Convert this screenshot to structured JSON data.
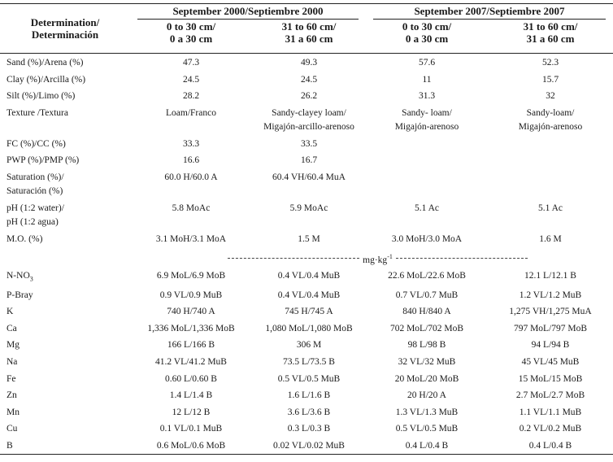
{
  "header": {
    "determination": [
      "Determination/",
      "Determinación"
    ],
    "groups": [
      "September 2000/Septiembre 2000",
      "September 2007/Septiembre 2007"
    ],
    "depths": [
      [
        "0 to 30 cm/",
        "0 a 30 cm"
      ],
      [
        "31 to 60 cm/",
        "31 a 60 cm"
      ],
      [
        "0 to 30 cm/",
        "0 a 30 cm"
      ],
      [
        "31 to 60 cm/",
        "31 a 60 cm"
      ]
    ]
  },
  "rows_top": [
    {
      "label": [
        "Sand (%)/Arena (%)"
      ],
      "values": [
        [
          "47.3"
        ],
        [
          "49.3"
        ],
        [
          "57.6"
        ],
        [
          "52.3"
        ]
      ]
    },
    {
      "label": [
        "Clay (%)/Arcilla (%)"
      ],
      "values": [
        [
          "24.5"
        ],
        [
          "24.5"
        ],
        [
          "11"
        ],
        [
          "15.7"
        ]
      ]
    },
    {
      "label": [
        "Silt (%)/Limo (%)"
      ],
      "values": [
        [
          "28.2"
        ],
        [
          "26.2"
        ],
        [
          "31.3"
        ],
        [
          "32"
        ]
      ]
    },
    {
      "label": [
        "Texture /Textura"
      ],
      "values": [
        [
          "Loam/Franco"
        ],
        [
          "Sandy-clayey loam/",
          "Migajón-arcillo-arenoso"
        ],
        [
          "Sandy- loam/",
          "Migajón-arenoso"
        ],
        [
          "Sandy-loam/",
          "Migajón-arenoso"
        ]
      ]
    },
    {
      "label": [
        "FC (%)/CC (%)"
      ],
      "values": [
        [
          "33.3"
        ],
        [
          "33.5"
        ],
        null,
        null
      ]
    },
    {
      "label": [
        "PWP (%)/PMP (%)"
      ],
      "values": [
        [
          "16.6"
        ],
        [
          "16.7"
        ],
        null,
        null
      ]
    },
    {
      "label": [
        "Saturation (%)/",
        "Saturación (%)"
      ],
      "values": [
        [
          "60.0 H/60.0 A"
        ],
        [
          "60.4 VH/60.4 MuA"
        ],
        null,
        null
      ]
    },
    {
      "label": [
        "pH (1:2 water)/",
        "pH (1:2 agua)"
      ],
      "values": [
        [
          "5.8 MoAc"
        ],
        [
          "5.9 MoAc"
        ],
        [
          "5.1 Ac"
        ],
        [
          "5.1 Ac"
        ]
      ]
    },
    {
      "label": [
        "M.O. (%)"
      ],
      "values": [
        [
          "3.1 MoH/3.1 MoA"
        ],
        [
          "1.5 M"
        ],
        [
          "3.0  MoH/3.0 MoA"
        ],
        [
          "1.6 M"
        ]
      ]
    }
  ],
  "unit": {
    "text": "mg·kg",
    "sup": "-1"
  },
  "rows_bottom": [
    {
      "label": [
        "N-NO"
      ],
      "label_sub": "3",
      "values": [
        [
          "6.9 MoL/6.9 MoB"
        ],
        [
          "0.4 VL/0.4 MuB"
        ],
        [
          "22.6 MoL/22.6 MoB"
        ],
        [
          "12.1 L/12.1 B"
        ]
      ]
    },
    {
      "label": [
        "P-Bray"
      ],
      "values": [
        [
          "0.9 VL/0.9 MuB"
        ],
        [
          "0.4 VL/0.4 MuB"
        ],
        [
          "0.7 VL/0.7 MuB"
        ],
        [
          "1.2 VL/1.2 MuB"
        ]
      ]
    },
    {
      "label": [
        "K"
      ],
      "values": [
        [
          "740 H/740 A"
        ],
        [
          "745 H/745 A"
        ],
        [
          "840 H/840 A"
        ],
        [
          "1,275 VH/1,275 MuA"
        ]
      ]
    },
    {
      "label": [
        "Ca"
      ],
      "values": [
        [
          "1,336 MoL/1,336 MoB"
        ],
        [
          "1,080 MoL/1,080 MoB"
        ],
        [
          "702 MoL/702 MoB"
        ],
        [
          "797 MoL/797 MoB"
        ]
      ]
    },
    {
      "label": [
        "Mg"
      ],
      "values": [
        [
          "166 L/166 B"
        ],
        [
          "306 M"
        ],
        [
          "98 L/98 B"
        ],
        [
          "94 L/94 B"
        ]
      ]
    },
    {
      "label": [
        "Na"
      ],
      "values": [
        [
          "41.2 VL/41.2 MuB"
        ],
        [
          "73.5 L/73.5 B"
        ],
        [
          "32 VL/32 MuB"
        ],
        [
          "45 VL/45 MuB"
        ]
      ]
    },
    {
      "label": [
        "Fe"
      ],
      "values": [
        [
          "0.60 L/0.60 B"
        ],
        [
          "0.5 VL/0.5 MuB"
        ],
        [
          "20 MoL/20 MoB"
        ],
        [
          "15 MoL/15 MoB"
        ]
      ]
    },
    {
      "label": [
        "Zn"
      ],
      "values": [
        [
          "1.4 L/1.4 B"
        ],
        [
          "1.6 L/1.6 B"
        ],
        [
          "20 H/20 A"
        ],
        [
          "2.7 MoL/2.7 MoB"
        ]
      ]
    },
    {
      "label": [
        "Mn"
      ],
      "values": [
        [
          "12 L/12 B"
        ],
        [
          "3.6 L/3.6 B"
        ],
        [
          "1.3 VL/1.3 MuB"
        ],
        [
          "1.1 VL/1.1 MuB"
        ]
      ]
    },
    {
      "label": [
        "Cu"
      ],
      "values": [
        [
          "0.1 VL/0.1 MuB"
        ],
        [
          "0.3 L/0.3 B"
        ],
        [
          "0.5 VL/0.5 MuB"
        ],
        [
          "0.2 VL/0.2 MuB"
        ]
      ]
    },
    {
      "label": [
        "B"
      ],
      "values": [
        [
          "0.6 MoL/0.6 MoB"
        ],
        [
          "0.02 VL/0.02 MuB"
        ],
        [
          "0.4 L/0.4 B"
        ],
        [
          "0.4 L/0.4 B"
        ]
      ]
    }
  ]
}
